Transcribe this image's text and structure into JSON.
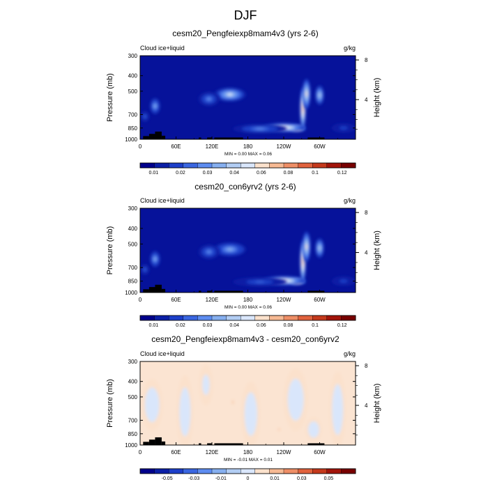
{
  "page_title": "DJF",
  "colors": {
    "seq_scale": [
      "#00008b",
      "#0b1fa6",
      "#1d3fc9",
      "#3a66e0",
      "#5d8cf0",
      "#86afef",
      "#b2cdf3",
      "#d9e6fb",
      "#fbe1cc",
      "#f6b993",
      "#ee8e66",
      "#e0623d",
      "#c4391c",
      "#a2140a",
      "#780000"
    ],
    "diff_scale": [
      "#00008b",
      "#0b1fa6",
      "#1d3fc9",
      "#3a66e0",
      "#5d8cf0",
      "#86afef",
      "#b2cdf3",
      "#d9e6fb",
      "#fbe1cc",
      "#f6b993",
      "#ee8e66",
      "#e0623d",
      "#c4391c",
      "#a2140a",
      "#780000"
    ],
    "terrain": "#000000",
    "background_seq": "#06129a",
    "background_diff": "#fbe4d2"
  },
  "chart_data": [
    {
      "type": "heatmap",
      "title": "cesm20_Pengfeiexp8mam4v3 (yrs 2-6)",
      "variable_label": "Cloud ice+liquid",
      "units_label": "g/kg",
      "ylabel": "Pressure (mb)",
      "y2label": "Height (km)",
      "x_ticks": [
        "0",
        "60E",
        "120E",
        "180",
        "120W",
        "60W"
      ],
      "x_tick_lon": [
        0,
        60,
        120,
        180,
        240,
        300
      ],
      "x_range": [
        0,
        360
      ],
      "y_ticks": [
        "300",
        "400",
        "500",
        "700",
        "850",
        "1000"
      ],
      "y_tick_p": [
        300,
        400,
        500,
        700,
        850,
        1000
      ],
      "y_range": [
        300,
        1000
      ],
      "y2_ticks": [
        "8",
        "4"
      ],
      "y2_tick_km": [
        8,
        4
      ],
      "stats": "MIN =    0.00   MAX =    0.06",
      "colorbar_labels": [
        "0.01",
        "0.02",
        "0.03",
        "0.04",
        "0.06",
        "0.08",
        "0.1",
        "0.12"
      ],
      "blobs": [
        {
          "lon": 262,
          "p": 855,
          "value": 0.06,
          "rx": 15,
          "rp": 42
        },
        {
          "lon": 240,
          "p": 845,
          "value": 0.045,
          "rx": 36,
          "rp": 55
        },
        {
          "lon": 272,
          "p": 640,
          "value": 0.055,
          "rx": 5,
          "rp": 190
        },
        {
          "lon": 278,
          "p": 520,
          "value": 0.04,
          "rx": 7,
          "rp": 110
        },
        {
          "lon": 300,
          "p": 530,
          "value": 0.03,
          "rx": 8,
          "rp": 80
        },
        {
          "lon": 150,
          "p": 525,
          "value": 0.035,
          "rx": 28,
          "rp": 55
        },
        {
          "lon": 115,
          "p": 560,
          "value": 0.02,
          "rx": 18,
          "rp": 60
        },
        {
          "lon": 25,
          "p": 620,
          "value": 0.025,
          "rx": 9,
          "rp": 75
        },
        {
          "lon": 8,
          "p": 720,
          "value": 0.015,
          "rx": 8,
          "rp": 60
        },
        {
          "lon": 200,
          "p": 860,
          "value": 0.02,
          "rx": 45,
          "rp": 60
        },
        {
          "lon": 340,
          "p": 850,
          "value": 0.012,
          "rx": 20,
          "rp": 60
        }
      ],
      "terrain": [
        {
          "lon0": 5,
          "lon1": 15,
          "p": 955
        },
        {
          "lon0": 15,
          "lon1": 25,
          "p": 925
        },
        {
          "lon0": 25,
          "lon1": 36,
          "p": 895
        },
        {
          "lon0": 36,
          "lon1": 42,
          "p": 950
        },
        {
          "lon0": 98,
          "lon1": 102,
          "p": 975
        },
        {
          "lon0": 112,
          "lon1": 120,
          "p": 975
        },
        {
          "lon0": 124,
          "lon1": 172,
          "p": 975
        },
        {
          "lon0": 280,
          "lon1": 308,
          "p": 975
        }
      ]
    },
    {
      "type": "heatmap",
      "title": "cesm20_con6yrv2 (yrs 2-6)",
      "variable_label": "Cloud ice+liquid",
      "units_label": "g/kg",
      "ylabel": "Pressure (mb)",
      "y2label": "Height (km)",
      "x_ticks": [
        "0",
        "60E",
        "120E",
        "180",
        "120W",
        "60W"
      ],
      "x_tick_lon": [
        0,
        60,
        120,
        180,
        240,
        300
      ],
      "x_range": [
        0,
        360
      ],
      "y_ticks": [
        "300",
        "400",
        "500",
        "700",
        "850",
        "1000"
      ],
      "y_tick_p": [
        300,
        400,
        500,
        700,
        850,
        1000
      ],
      "y_range": [
        300,
        1000
      ],
      "y2_ticks": [
        "8",
        "4"
      ],
      "y2_tick_km": [
        8,
        4
      ],
      "stats": "MIN =    0.00   MAX =    0.06",
      "colorbar_labels": [
        "0.01",
        "0.02",
        "0.03",
        "0.04",
        "0.06",
        "0.08",
        "0.1",
        "0.12"
      ],
      "blobs": [
        {
          "lon": 262,
          "p": 855,
          "value": 0.06,
          "rx": 15,
          "rp": 42
        },
        {
          "lon": 240,
          "p": 845,
          "value": 0.045,
          "rx": 36,
          "rp": 55
        },
        {
          "lon": 272,
          "p": 640,
          "value": 0.055,
          "rx": 5,
          "rp": 190
        },
        {
          "lon": 278,
          "p": 520,
          "value": 0.04,
          "rx": 7,
          "rp": 110
        },
        {
          "lon": 300,
          "p": 530,
          "value": 0.03,
          "rx": 8,
          "rp": 80
        },
        {
          "lon": 150,
          "p": 540,
          "value": 0.025,
          "rx": 28,
          "rp": 55
        },
        {
          "lon": 115,
          "p": 560,
          "value": 0.02,
          "rx": 18,
          "rp": 60
        },
        {
          "lon": 25,
          "p": 620,
          "value": 0.025,
          "rx": 9,
          "rp": 75
        },
        {
          "lon": 8,
          "p": 720,
          "value": 0.015,
          "rx": 8,
          "rp": 60
        },
        {
          "lon": 200,
          "p": 860,
          "value": 0.015,
          "rx": 45,
          "rp": 60
        },
        {
          "lon": 340,
          "p": 850,
          "value": 0.012,
          "rx": 20,
          "rp": 60
        }
      ],
      "terrain": [
        {
          "lon0": 5,
          "lon1": 15,
          "p": 955
        },
        {
          "lon0": 15,
          "lon1": 25,
          "p": 925
        },
        {
          "lon0": 25,
          "lon1": 36,
          "p": 895
        },
        {
          "lon0": 36,
          "lon1": 42,
          "p": 950
        },
        {
          "lon0": 98,
          "lon1": 102,
          "p": 975
        },
        {
          "lon0": 112,
          "lon1": 120,
          "p": 975
        },
        {
          "lon0": 124,
          "lon1": 172,
          "p": 975
        },
        {
          "lon0": 280,
          "lon1": 308,
          "p": 975
        }
      ]
    },
    {
      "type": "heatmap",
      "title": "cesm20_Pengfeiexp8mam4v3 - cesm20_con6yrv2",
      "variable_label": "Cloud ice+liquid",
      "units_label": "g/kg",
      "ylabel": "Pressure (mb)",
      "y2label": "Height (km)",
      "x_ticks": [
        "0",
        "60E",
        "120E",
        "180",
        "120W",
        "60W"
      ],
      "x_tick_lon": [
        0,
        60,
        120,
        180,
        240,
        300
      ],
      "x_range": [
        0,
        360
      ],
      "y_ticks": [
        "300",
        "400",
        "500",
        "700",
        "850",
        "1000"
      ],
      "y_tick_p": [
        300,
        400,
        500,
        700,
        850,
        1000
      ],
      "y_range": [
        300,
        1000
      ],
      "y2_ticks": [
        "8",
        "4"
      ],
      "y2_tick_km": [
        8,
        4
      ],
      "stats": "MIN =   -0.01   MAX =    0.01",
      "colorbar_labels": [
        "-0.05",
        "-0.03",
        "-0.01",
        "0",
        "0.01",
        "0.03",
        "0.05"
      ],
      "blobs": [
        {
          "lon": 20,
          "p": 560,
          "value": -0.003,
          "rx": 18,
          "rp": 200
        },
        {
          "lon": 75,
          "p": 620,
          "value": -0.003,
          "rx": 14,
          "rp": 300
        },
        {
          "lon": 110,
          "p": 420,
          "value": -0.002,
          "rx": 12,
          "rp": 120
        },
        {
          "lon": 185,
          "p": 640,
          "value": -0.003,
          "rx": 16,
          "rp": 280
        },
        {
          "lon": 260,
          "p": 520,
          "value": -0.003,
          "rx": 20,
          "rp": 220
        },
        {
          "lon": 290,
          "p": 800,
          "value": -0.003,
          "rx": 14,
          "rp": 140
        },
        {
          "lon": 330,
          "p": 600,
          "value": -0.003,
          "rx": 14,
          "rp": 300
        },
        {
          "lon": 155,
          "p": 540,
          "value": 0.006,
          "rx": 3,
          "rp": 25
        },
        {
          "lon": 232,
          "p": 800,
          "value": 0.006,
          "rx": 3,
          "rp": 25
        }
      ],
      "terrain": [
        {
          "lon0": 5,
          "lon1": 15,
          "p": 955
        },
        {
          "lon0": 15,
          "lon1": 25,
          "p": 925
        },
        {
          "lon0": 25,
          "lon1": 36,
          "p": 895
        },
        {
          "lon0": 36,
          "lon1": 42,
          "p": 950
        },
        {
          "lon0": 98,
          "lon1": 102,
          "p": 975
        },
        {
          "lon0": 112,
          "lon1": 120,
          "p": 975
        },
        {
          "lon0": 124,
          "lon1": 172,
          "p": 975
        },
        {
          "lon0": 280,
          "lon1": 308,
          "p": 975
        }
      ]
    }
  ]
}
